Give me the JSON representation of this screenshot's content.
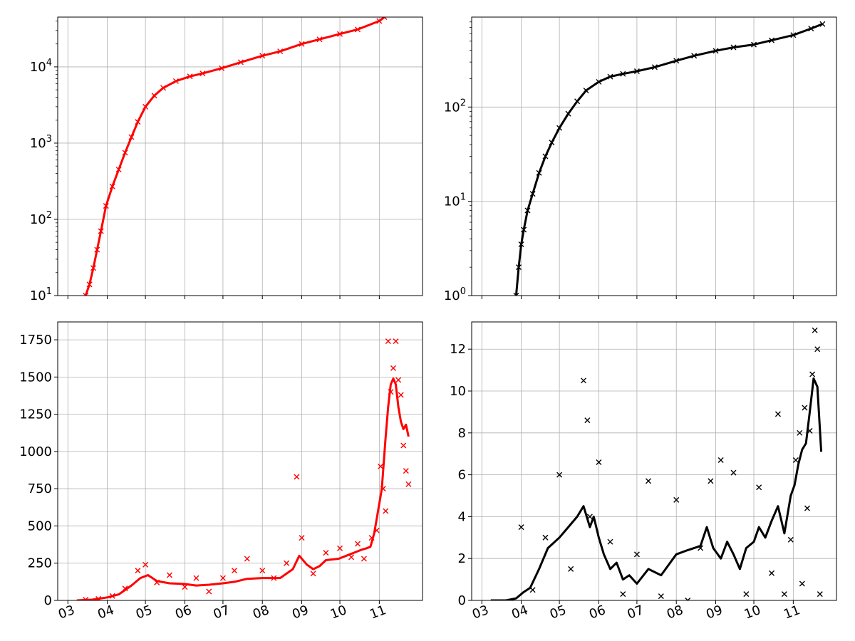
{
  "figure": {
    "colors": {
      "series_a": "#ff0000",
      "series_b": "#000000",
      "grid": "#b0b0b0"
    }
  },
  "chart_data": [
    {
      "panel": "top-left",
      "type": "line",
      "marker": "x",
      "yscale": "log",
      "xlim": [
        "2020-02-22",
        "2020-12-05"
      ],
      "ylim": [
        10,
        45000
      ],
      "grid": true,
      "yticks": [
        10,
        100,
        1000,
        10000
      ],
      "ytick_labels": [
        {
          "base": "10",
          "exp": "1"
        },
        {
          "base": "10",
          "exp": "2"
        },
        {
          "base": "10",
          "exp": "3"
        },
        {
          "base": "10",
          "exp": "4"
        }
      ],
      "xticks": [
        "2020-03-01",
        "2020-04-01",
        "2020-05-01",
        "2020-06-01",
        "2020-07-01",
        "2020-08-01",
        "2020-09-01",
        "2020-10-01",
        "2020-11-01"
      ],
      "xtick_labels": [],
      "color": "#ff0000",
      "series": [
        {
          "style": "line+markers",
          "x": [
            "2020-03-15",
            "2020-03-18",
            "2020-03-21",
            "2020-03-24",
            "2020-03-27",
            "2020-03-31",
            "2020-04-05",
            "2020-04-10",
            "2020-04-15",
            "2020-04-20",
            "2020-04-25",
            "2020-05-01",
            "2020-05-08",
            "2020-05-15",
            "2020-05-25",
            "2020-06-05",
            "2020-06-15",
            "2020-06-30",
            "2020-07-15",
            "2020-08-01",
            "2020-08-15",
            "2020-09-01",
            "2020-09-15",
            "2020-10-01",
            "2020-10-15",
            "2020-11-01",
            "2020-11-05"
          ],
          "y": [
            10,
            14,
            23,
            40,
            70,
            150,
            270,
            450,
            750,
            1200,
            1900,
            3000,
            4200,
            5300,
            6500,
            7500,
            8200,
            9600,
            11500,
            14000,
            16000,
            20000,
            23000,
            27000,
            31000,
            40000,
            45000
          ]
        }
      ]
    },
    {
      "panel": "top-right",
      "type": "line",
      "marker": "x",
      "yscale": "log",
      "xlim": [
        "2020-02-22",
        "2020-12-05"
      ],
      "ylim": [
        1,
        900
      ],
      "grid": true,
      "yticks": [
        1,
        10,
        100
      ],
      "ytick_labels": [
        {
          "base": "10",
          "exp": "0"
        },
        {
          "base": "10",
          "exp": "1"
        },
        {
          "base": "10",
          "exp": "2"
        }
      ],
      "xticks": [
        "2020-03-01",
        "2020-04-01",
        "2020-05-01",
        "2020-06-01",
        "2020-07-01",
        "2020-08-01",
        "2020-09-01",
        "2020-10-01",
        "2020-11-01"
      ],
      "xtick_labels": [],
      "color": "#000000",
      "series": [
        {
          "style": "line+markers",
          "x": [
            "2020-03-28",
            "2020-03-30",
            "2020-04-01",
            "2020-04-03",
            "2020-04-06",
            "2020-04-10",
            "2020-04-15",
            "2020-04-20",
            "2020-04-25",
            "2020-05-01",
            "2020-05-08",
            "2020-05-15",
            "2020-05-22",
            "2020-06-01",
            "2020-06-10",
            "2020-06-20",
            "2020-07-01",
            "2020-07-15",
            "2020-08-01",
            "2020-08-15",
            "2020-09-01",
            "2020-09-15",
            "2020-10-01",
            "2020-10-15",
            "2020-11-01",
            "2020-11-15",
            "2020-11-24"
          ],
          "y": [
            1,
            2,
            3.5,
            5,
            8,
            12,
            20,
            30,
            42,
            60,
            85,
            115,
            150,
            185,
            210,
            225,
            240,
            265,
            310,
            350,
            395,
            430,
            460,
            510,
            580,
            680,
            760
          ]
        }
      ]
    },
    {
      "panel": "bottom-left",
      "type": "line",
      "marker": "x",
      "yscale": "linear",
      "xlim": [
        "2020-02-22",
        "2020-12-05"
      ],
      "ylim": [
        0,
        1870
      ],
      "grid": true,
      "yticks": [
        0,
        250,
        500,
        750,
        1000,
        1250,
        1500,
        1750
      ],
      "ytick_labels": [
        "0",
        "250",
        "500",
        "750",
        "1000",
        "1250",
        "1500",
        "1750"
      ],
      "xticks": [
        "2020-03-01",
        "2020-04-01",
        "2020-05-01",
        "2020-06-01",
        "2020-07-01",
        "2020-08-01",
        "2020-09-01",
        "2020-10-01",
        "2020-11-01"
      ],
      "xtick_labels": [
        "03",
        "04",
        "05",
        "06",
        "07",
        "08",
        "09",
        "10",
        "11"
      ],
      "color": "#ff0000",
      "series": [
        {
          "style": "line",
          "x": [
            "2020-03-08",
            "2020-03-20",
            "2020-04-01",
            "2020-04-10",
            "2020-04-20",
            "2020-04-27",
            "2020-05-03",
            "2020-05-10",
            "2020-05-20",
            "2020-06-01",
            "2020-06-10",
            "2020-06-20",
            "2020-07-01",
            "2020-07-10",
            "2020-07-20",
            "2020-08-01",
            "2020-08-15",
            "2020-08-25",
            "2020-08-30",
            "2020-09-05",
            "2020-09-10",
            "2020-09-15",
            "2020-09-20",
            "2020-09-30",
            "2020-10-06",
            "2020-10-12",
            "2020-10-18",
            "2020-10-22",
            "2020-10-25",
            "2020-10-28",
            "2020-10-31",
            "2020-11-03",
            "2020-11-06",
            "2020-11-08",
            "2020-11-10",
            "2020-11-12",
            "2020-11-14",
            "2020-11-16",
            "2020-11-18",
            "2020-11-20",
            "2020-11-22",
            "2020-11-24"
          ],
          "y": [
            0,
            5,
            20,
            40,
            100,
            150,
            170,
            130,
            115,
            110,
            100,
            105,
            115,
            125,
            145,
            150,
            150,
            210,
            300,
            240,
            210,
            230,
            270,
            280,
            300,
            320,
            340,
            350,
            360,
            450,
            600,
            750,
            1100,
            1300,
            1450,
            1490,
            1450,
            1300,
            1200,
            1150,
            1180,
            1100
          ]
        },
        {
          "style": "markers",
          "x": [
            "2020-03-15",
            "2020-03-25",
            "2020-04-05",
            "2020-04-15",
            "2020-04-25",
            "2020-05-01",
            "2020-05-10",
            "2020-05-20",
            "2020-06-01",
            "2020-06-10",
            "2020-06-20",
            "2020-07-01",
            "2020-07-10",
            "2020-07-20",
            "2020-08-01",
            "2020-08-10",
            "2020-08-20",
            "2020-08-28",
            "2020-09-01",
            "2020-09-10",
            "2020-09-20",
            "2020-10-01",
            "2020-10-10",
            "2020-10-15",
            "2020-10-20",
            "2020-10-26",
            "2020-10-30",
            "2020-11-02",
            "2020-11-04",
            "2020-11-06",
            "2020-11-08",
            "2020-11-10",
            "2020-11-12",
            "2020-11-14",
            "2020-11-16",
            "2020-11-18",
            "2020-11-20",
            "2020-11-22",
            "2020-11-24"
          ],
          "y": [
            5,
            10,
            30,
            80,
            200,
            240,
            120,
            170,
            90,
            150,
            60,
            150,
            200,
            280,
            200,
            150,
            250,
            830,
            420,
            180,
            320,
            350,
            290,
            380,
            280,
            420,
            470,
            900,
            750,
            600,
            1740,
            1400,
            1560,
            1740,
            1480,
            1380,
            1040,
            870,
            780
          ]
        }
      ]
    },
    {
      "panel": "bottom-right",
      "type": "line",
      "marker": "x",
      "yscale": "linear",
      "xlim": [
        "2020-02-22",
        "2020-12-05"
      ],
      "ylim": [
        0,
        13.3
      ],
      "grid": true,
      "yticks": [
        0,
        2,
        4,
        6,
        8,
        10,
        12
      ],
      "ytick_labels": [
        "0",
        "2",
        "4",
        "6",
        "8",
        "10",
        "12"
      ],
      "xticks": [
        "2020-03-01",
        "2020-04-01",
        "2020-05-01",
        "2020-06-01",
        "2020-07-01",
        "2020-08-01",
        "2020-09-01",
        "2020-10-01",
        "2020-11-01"
      ],
      "xtick_labels": [
        "03",
        "04",
        "05",
        "06",
        "07",
        "08",
        "09",
        "10",
        "11"
      ],
      "color": "#000000",
      "series": [
        {
          "style": "line",
          "x": [
            "2020-03-08",
            "2020-03-20",
            "2020-03-28",
            "2020-04-03",
            "2020-04-08",
            "2020-04-15",
            "2020-04-22",
            "2020-05-01",
            "2020-05-08",
            "2020-05-15",
            "2020-05-20",
            "2020-05-25",
            "2020-05-28",
            "2020-06-01",
            "2020-06-05",
            "2020-06-10",
            "2020-06-15",
            "2020-06-20",
            "2020-06-25",
            "2020-07-01",
            "2020-07-10",
            "2020-07-20",
            "2020-08-01",
            "2020-08-10",
            "2020-08-20",
            "2020-08-25",
            "2020-08-30",
            "2020-09-05",
            "2020-09-10",
            "2020-09-15",
            "2020-09-20",
            "2020-09-25",
            "2020-10-01",
            "2020-10-05",
            "2020-10-10",
            "2020-10-15",
            "2020-10-20",
            "2020-10-25",
            "2020-10-30",
            "2020-11-02",
            "2020-11-05",
            "2020-11-08",
            "2020-11-11",
            "2020-11-14",
            "2020-11-17",
            "2020-11-20",
            "2020-11-23"
          ],
          "y": [
            0,
            0,
            0.1,
            0.4,
            0.6,
            1.5,
            2.5,
            3.0,
            3.5,
            4.0,
            4.5,
            3.5,
            4.0,
            3.0,
            2.2,
            1.5,
            1.8,
            1.0,
            1.2,
            0.8,
            1.5,
            1.2,
            2.2,
            2.4,
            2.6,
            3.5,
            2.5,
            2.0,
            2.8,
            2.2,
            1.5,
            2.5,
            2.8,
            3.5,
            3.0,
            3.8,
            4.5,
            3.2,
            5.0,
            5.5,
            6.5,
            7.2,
            7.5,
            9.0,
            10.6,
            10.2,
            7.1
          ]
        },
        {
          "style": "markers",
          "x": [
            "2020-04-01",
            "2020-04-10",
            "2020-04-20",
            "2020-05-01",
            "2020-05-10",
            "2020-05-20",
            "2020-05-23",
            "2020-05-25",
            "2020-06-01",
            "2020-06-10",
            "2020-06-20",
            "2020-07-01",
            "2020-07-10",
            "2020-07-20",
            "2020-08-01",
            "2020-08-10",
            "2020-08-20",
            "2020-08-28",
            "2020-09-05",
            "2020-09-15",
            "2020-09-25",
            "2020-10-05",
            "2020-10-15",
            "2020-10-20",
            "2020-10-25",
            "2020-10-30",
            "2020-11-03",
            "2020-11-06",
            "2020-11-08",
            "2020-11-10",
            "2020-11-12",
            "2020-11-14",
            "2020-11-16",
            "2020-11-18",
            "2020-11-20",
            "2020-11-22"
          ],
          "y": [
            3.5,
            0.5,
            3.0,
            6.0,
            1.5,
            10.5,
            8.6,
            4.0,
            6.6,
            2.8,
            0.3,
            2.2,
            5.7,
            0.2,
            4.8,
            0.0,
            2.5,
            5.7,
            6.7,
            6.1,
            0.3,
            5.4,
            1.3,
            8.9,
            0.3,
            2.9,
            6.7,
            8.0,
            0.8,
            9.2,
            4.4,
            8.1,
            10.8,
            12.9,
            12.0,
            0.3
          ]
        }
      ]
    }
  ]
}
